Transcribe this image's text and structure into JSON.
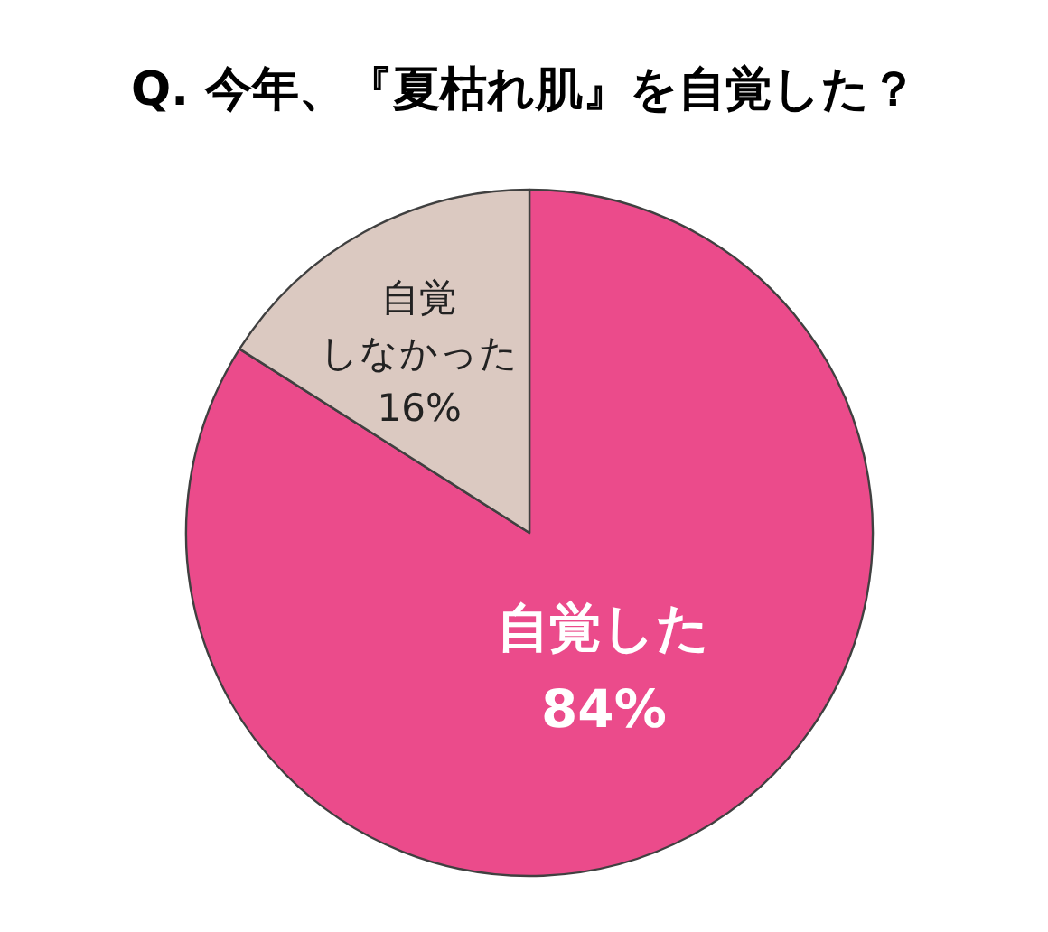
{
  "chart_data": {
    "type": "pie",
    "title": "Q. 今年、『夏枯れ肌』を自覚した？",
    "categories": [
      "自覚した",
      "自覚しなかった"
    ],
    "values": [
      84,
      16
    ],
    "colors": [
      "#eb4b8b",
      "#dbc9c1"
    ],
    "value_labels": [
      "84%",
      "16%"
    ],
    "legend": false
  }
}
